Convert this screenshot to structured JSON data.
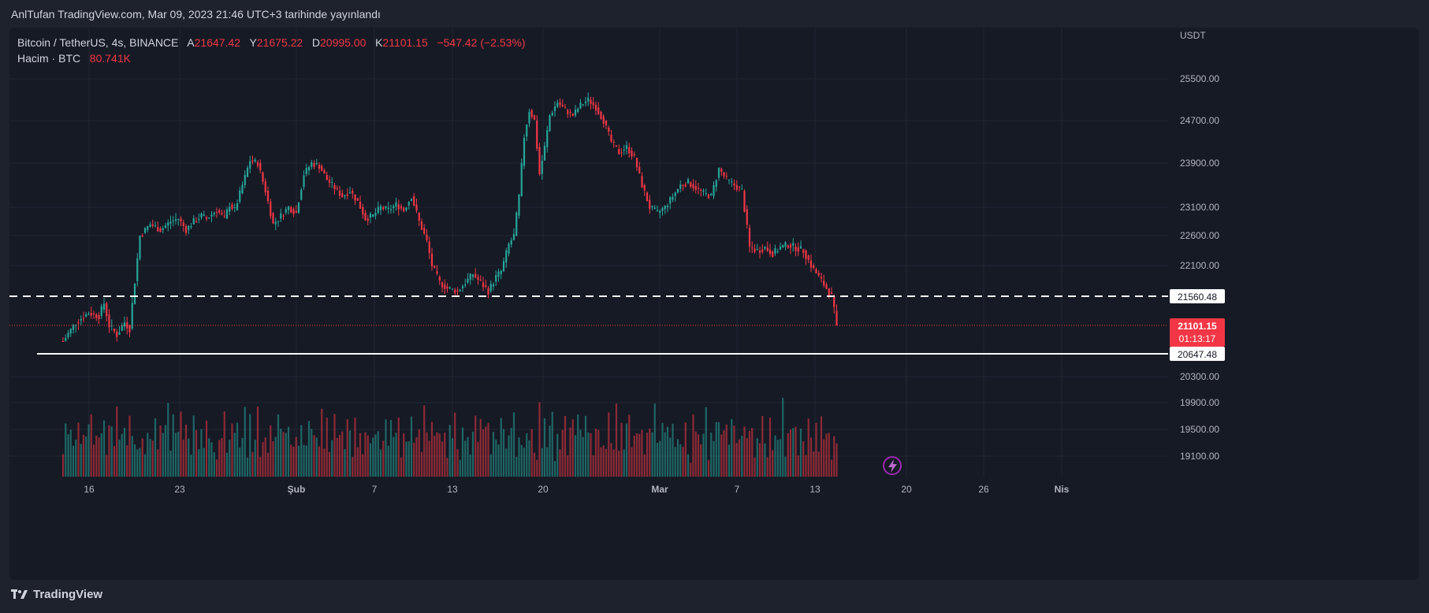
{
  "header": {
    "published": "AnlTufan TradingView.com, Mar 09, 2023 21:46 UTC+3 tarihinde yayınlandı"
  },
  "legend": {
    "symbol": "Bitcoin / TetherUS, 4s, BINANCE",
    "open_label": "A",
    "open": "21647.42",
    "high_label": "Y",
    "high": "21675.22",
    "low_label": "D",
    "low": "20995.00",
    "close_label": "K",
    "close": "21101.15",
    "change": "−547.42 (−2.53%)",
    "volume_label": "Hacim · BTC",
    "volume": "80.741K"
  },
  "footer": {
    "brand": "TradingView"
  },
  "chart_data": {
    "type": "candlestick",
    "currency": "USDT",
    "y_ticks": [
      "25500.00",
      "24700.00",
      "23900.00",
      "23100.00",
      "22600.00",
      "22100.00",
      "20300.00",
      "19900.00",
      "19500.00",
      "19100.00"
    ],
    "x_ticks": [
      "16",
      "23",
      "Şub",
      "7",
      "13",
      "20",
      "Mar",
      "7",
      "13",
      "20",
      "26",
      "Nis"
    ],
    "levels": [
      {
        "price": 21560.48,
        "label": "21560.48",
        "style": "dashed"
      },
      {
        "price": 20647.48,
        "label": "20647.48",
        "style": "solid"
      }
    ],
    "last_price": {
      "value": 21101.15,
      "label": "21101.15",
      "countdown": "01:13:17"
    },
    "colors": {
      "up": "#26a69a",
      "down": "#f23645",
      "level": "#ffffff",
      "last": "#f23645"
    },
    "price_path": [
      [
        0,
        20850
      ],
      [
        5,
        21150
      ],
      [
        10,
        21300
      ],
      [
        14,
        21250
      ],
      [
        16,
        21450
      ],
      [
        18,
        21100
      ],
      [
        21,
        20950
      ],
      [
        24,
        21150
      ],
      [
        26,
        21050
      ],
      [
        30,
        22600
      ],
      [
        34,
        22800
      ],
      [
        38,
        22700
      ],
      [
        42,
        22850
      ],
      [
        45,
        22900
      ],
      [
        48,
        22700
      ],
      [
        51,
        22850
      ],
      [
        54,
        22950
      ],
      [
        56,
        22900
      ],
      [
        60,
        23050
      ],
      [
        63,
        22900
      ],
      [
        65,
        23150
      ],
      [
        67,
        23050
      ],
      [
        70,
        23500
      ],
      [
        73,
        23950
      ],
      [
        76,
        23900
      ],
      [
        79,
        23400
      ],
      [
        82,
        22800
      ],
      [
        85,
        22950
      ],
      [
        88,
        23100
      ],
      [
        91,
        23000
      ],
      [
        94,
        23700
      ],
      [
        97,
        23900
      ],
      [
        100,
        23850
      ],
      [
        103,
        23600
      ],
      [
        106,
        23450
      ],
      [
        109,
        23300
      ],
      [
        112,
        23400
      ],
      [
        115,
        23200
      ],
      [
        118,
        22900
      ],
      [
        121,
        22950
      ],
      [
        124,
        23100
      ],
      [
        127,
        23050
      ],
      [
        130,
        23150
      ],
      [
        133,
        23050
      ],
      [
        136,
        23300
      ],
      [
        139,
        22850
      ],
      [
        142,
        22500
      ],
      [
        144,
        22100
      ],
      [
        147,
        21800
      ],
      [
        150,
        21700
      ],
      [
        154,
        21650
      ],
      [
        157,
        21800
      ],
      [
        160,
        21950
      ],
      [
        163,
        21800
      ],
      [
        166,
        21650
      ],
      [
        169,
        21900
      ],
      [
        171,
        22000
      ],
      [
        174,
        22450
      ],
      [
        176,
        22600
      ],
      [
        178,
        23300
      ],
      [
        180,
        24400
      ],
      [
        182,
        24900
      ],
      [
        184,
        24700
      ],
      [
        186,
        23700
      ],
      [
        188,
        24200
      ],
      [
        190,
        24800
      ],
      [
        193,
        25050
      ],
      [
        196,
        24900
      ],
      [
        199,
        24800
      ],
      [
        202,
        25000
      ],
      [
        205,
        25100
      ],
      [
        208,
        24950
      ],
      [
        211,
        24700
      ],
      [
        214,
        24300
      ],
      [
        217,
        24100
      ],
      [
        220,
        24200
      ],
      [
        223,
        24000
      ],
      [
        226,
        23500
      ],
      [
        229,
        23100
      ],
      [
        232,
        23000
      ],
      [
        235,
        23100
      ],
      [
        238,
        23300
      ],
      [
        241,
        23500
      ],
      [
        244,
        23550
      ],
      [
        247,
        23450
      ],
      [
        250,
        23350
      ],
      [
        253,
        23300
      ],
      [
        256,
        23800
      ],
      [
        259,
        23600
      ],
      [
        262,
        23500
      ],
      [
        265,
        23400
      ],
      [
        268,
        22400
      ],
      [
        271,
        22350
      ],
      [
        274,
        22400
      ],
      [
        277,
        22300
      ],
      [
        280,
        22400
      ],
      [
        283,
        22450
      ],
      [
        286,
        22400
      ],
      [
        289,
        22350
      ],
      [
        292,
        22100
      ],
      [
        295,
        21900
      ],
      [
        298,
        21700
      ],
      [
        300,
        21560
      ],
      [
        302,
        21101
      ]
    ],
    "volume_pattern": [
      16,
      30,
      22,
      40,
      18,
      12,
      48,
      25,
      35,
      20,
      28,
      55,
      15,
      38,
      22,
      30,
      44,
      18,
      26,
      33,
      21,
      50,
      27,
      17,
      36,
      24,
      42,
      19,
      31,
      23
    ]
  }
}
